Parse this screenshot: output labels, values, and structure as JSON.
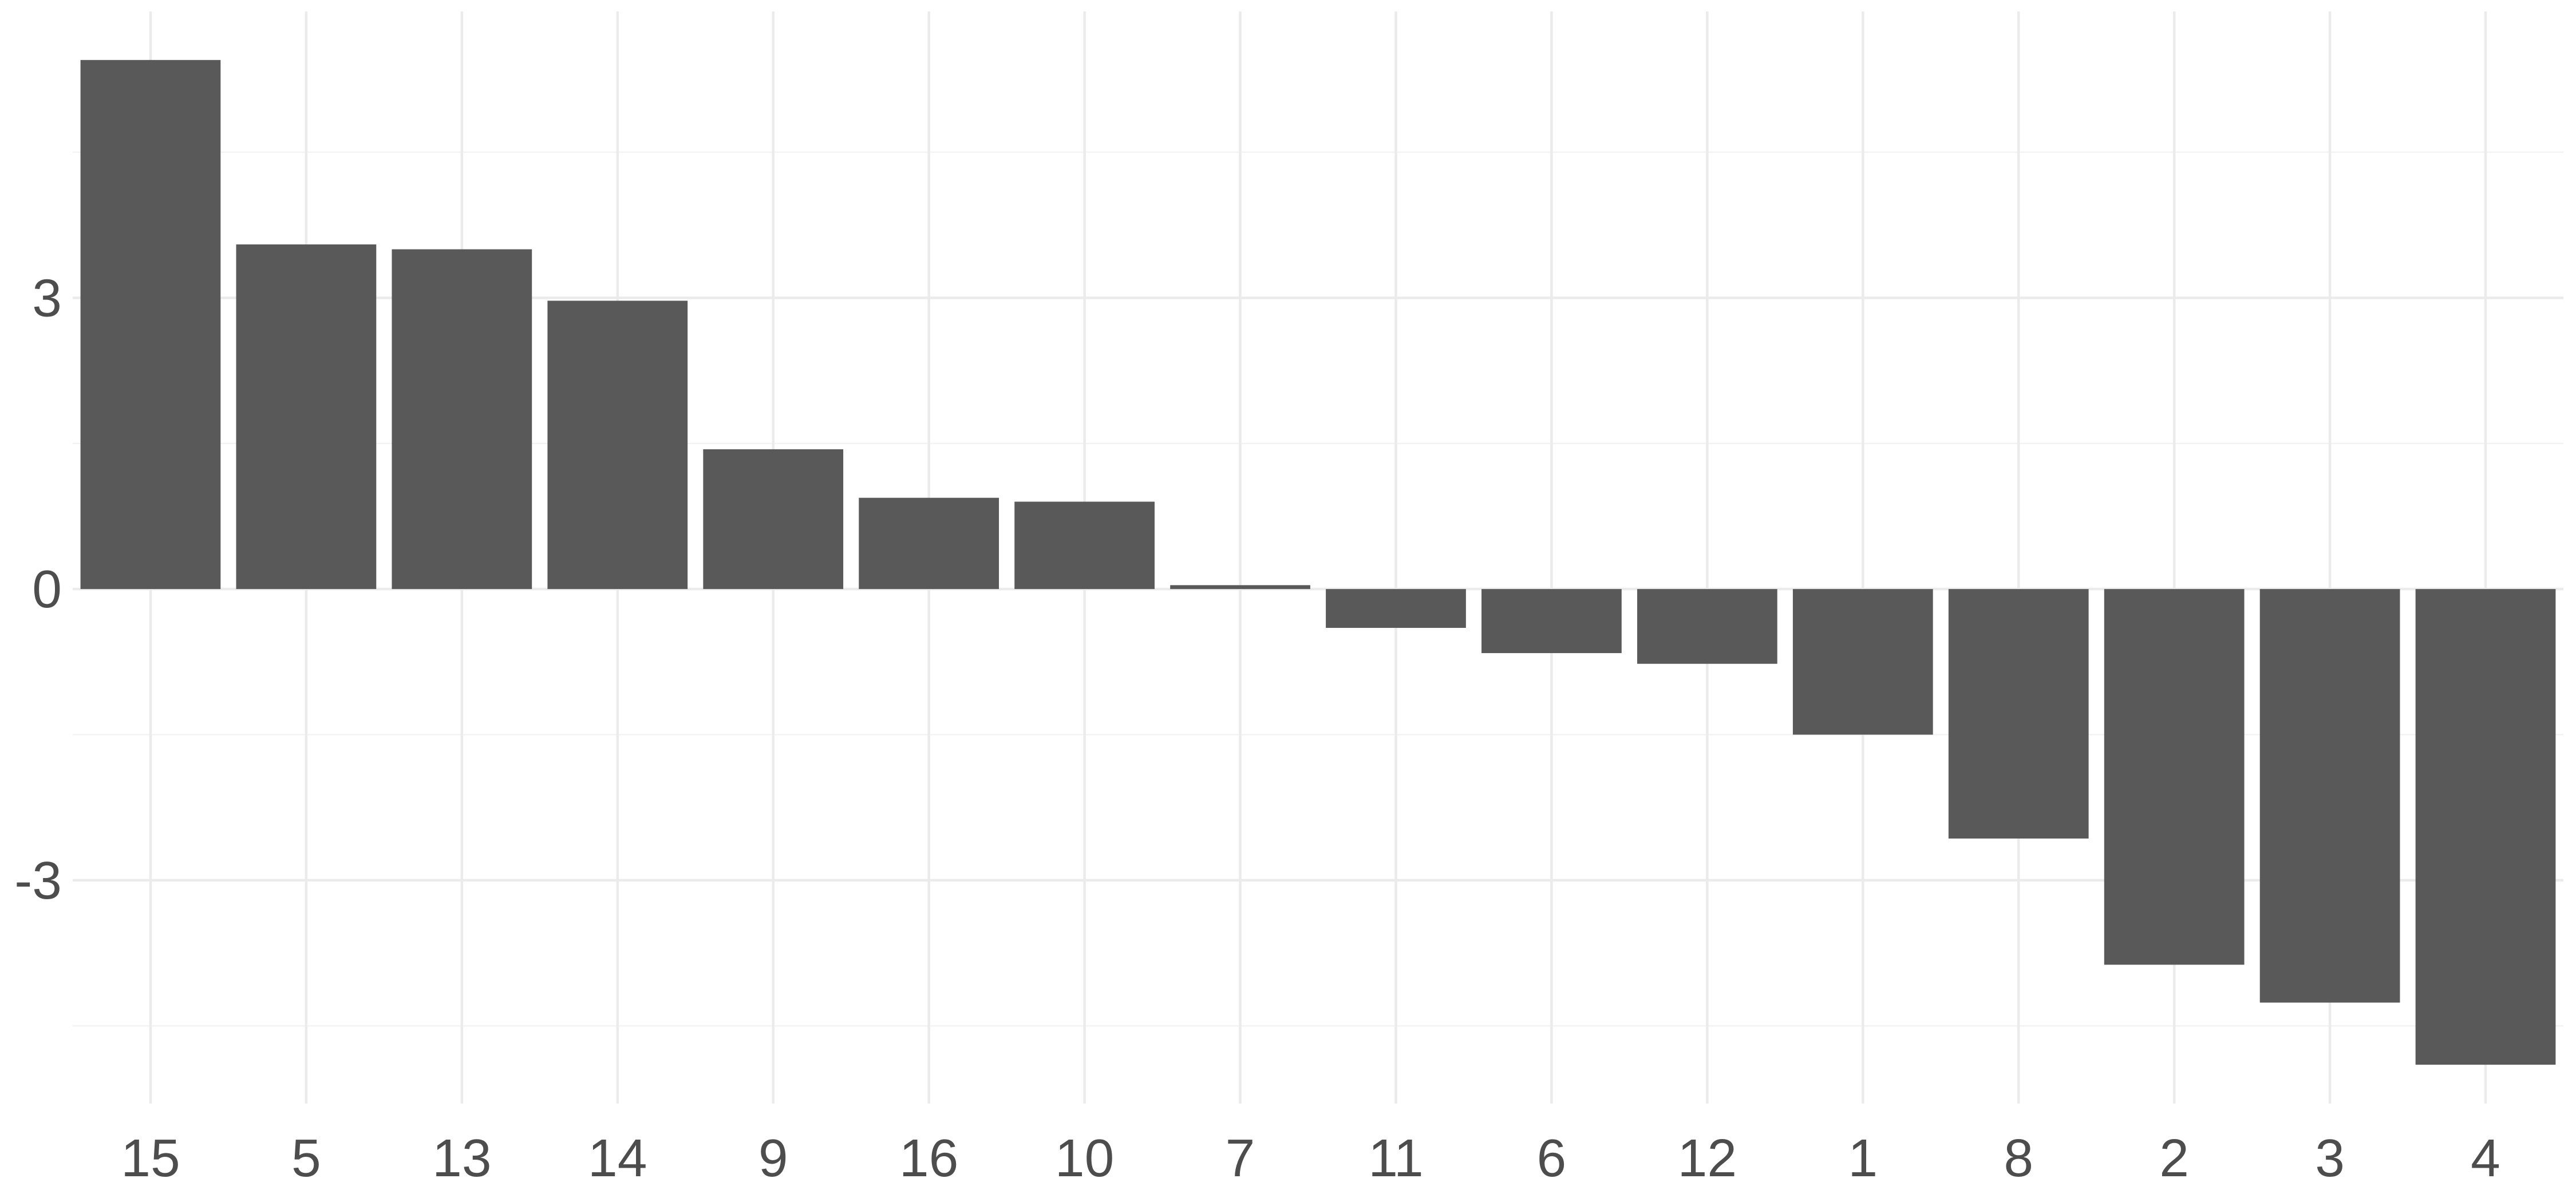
{
  "chart_data": {
    "type": "bar",
    "title": "",
    "xlabel": "",
    "ylabel": "",
    "categories": [
      "15",
      "5",
      "13",
      "14",
      "9",
      "16",
      "10",
      "7",
      "11",
      "6",
      "12",
      "1",
      "8",
      "2",
      "3",
      "4"
    ],
    "values": [
      5.45,
      3.55,
      3.5,
      2.97,
      1.44,
      0.94,
      0.9,
      0.04,
      -0.4,
      -0.66,
      -0.77,
      -1.5,
      -2.57,
      -3.87,
      -4.26,
      -4.9
    ],
    "ylim": [
      -5.3,
      5.95
    ],
    "yticks": [
      -3,
      0,
      3
    ],
    "ytick_labels": [
      "-3",
      "0",
      "3"
    ],
    "y_minor_gridlines": [
      -4.5,
      -1.5,
      1.5,
      4.5
    ],
    "bar_color": "#595959",
    "gridline_color": "#ebebeb",
    "background_color": "#ffffff",
    "grid": true,
    "legend": "none"
  }
}
